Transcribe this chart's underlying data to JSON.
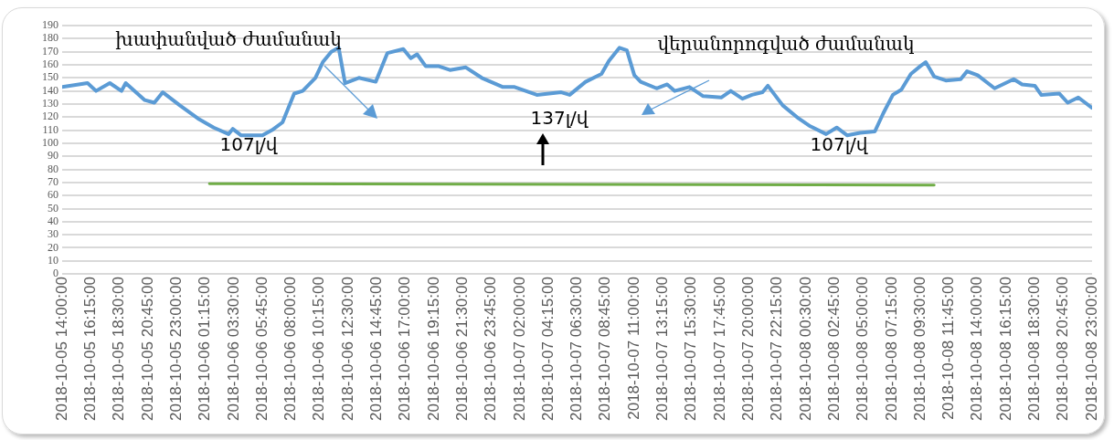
{
  "chart_data": {
    "type": "line",
    "xlim": [
      "2018-10-05T14:00",
      "2018-10-08T23:00"
    ],
    "xticks": [
      {
        "value": "2018-10-05T14:00",
        "label": "2018-10-05 14:00:00"
      },
      {
        "value": "2018-10-05T16:15",
        "label": "2018-10-05 16:15:00"
      },
      {
        "value": "2018-10-05T18:30",
        "label": "2018-10-05 18:30:00"
      },
      {
        "value": "2018-10-05T20:45",
        "label": "2018-10-05 20:45:00"
      },
      {
        "value": "2018-10-05T23:00",
        "label": "2018-10-05 23:00:00"
      },
      {
        "value": "2018-10-06T01:15",
        "label": "2018-10-06 01:15:00"
      },
      {
        "value": "2018-10-06T03:30",
        "label": "2018-10-06 03:30:00"
      },
      {
        "value": "2018-10-06T05:45",
        "label": "2018-10-06 05:45:00"
      },
      {
        "value": "2018-10-06T08:00",
        "label": "2018-10-06 08:00:00"
      },
      {
        "value": "2018-10-06T10:15",
        "label": "2018-10-06 10:15:00"
      },
      {
        "value": "2018-10-06T12:30",
        "label": "2018-10-06 12:30:00"
      },
      {
        "value": "2018-10-06T14:45",
        "label": "2018-10-06 14:45:00"
      },
      {
        "value": "2018-10-06T17:00",
        "label": "2018-10-06 17:00:00"
      },
      {
        "value": "2018-10-06T19:15",
        "label": "2018-10-06 19:15:00"
      },
      {
        "value": "2018-10-06T21:30",
        "label": "2018-10-06 21:30:00"
      },
      {
        "value": "2018-10-06T23:45",
        "label": "2018-10-06 23:45:00"
      },
      {
        "value": "2018-10-07T02:00",
        "label": "2018-10-07 02:00:00"
      },
      {
        "value": "2018-10-07T04:15",
        "label": "2018-10-07 04:15:00"
      },
      {
        "value": "2018-10-07T06:30",
        "label": "2018-10-07 06:30:00"
      },
      {
        "value": "2018-10-07T08:45",
        "label": "2018-10-07 08:45:00"
      },
      {
        "value": "2018-10-07T11:00",
        "label": "2018-10-07 11:00:00"
      },
      {
        "value": "2018-10-07T13:15",
        "label": "2018-10-07 13:15:00"
      },
      {
        "value": "2018-10-07T15:30",
        "label": "2018-10-07 15:30:00"
      },
      {
        "value": "2018-10-07T17:45",
        "label": "2018-10-07 17:45:00"
      },
      {
        "value": "2018-10-07T20:00",
        "label": "2018-10-07 20:00:00"
      },
      {
        "value": "2018-10-07T22:15",
        "label": "2018-10-07 22:15:00"
      },
      {
        "value": "2018-10-08T00:30",
        "label": "2018-10-08 00:30:00"
      },
      {
        "value": "2018-10-08T02:45",
        "label": "2018-10-08 02:45:00"
      },
      {
        "value": "2018-10-08T05:00",
        "label": "2018-10-08 05:00:00"
      },
      {
        "value": "2018-10-08T07:15",
        "label": "2018-10-08 07:15:00"
      },
      {
        "value": "2018-10-08T09:30",
        "label": "2018-10-08 09:30:00"
      },
      {
        "value": "2018-10-08T11:45",
        "label": "2018-10-08 11:45:00"
      },
      {
        "value": "2018-10-08T14:00",
        "label": "2018-10-08 14:00:00"
      },
      {
        "value": "2018-10-08T16:15",
        "label": "2018-10-08 16:15:00"
      },
      {
        "value": "2018-10-08T18:30",
        "label": "2018-10-08 18:30:00"
      },
      {
        "value": "2018-10-08T20:45",
        "label": "2018-10-08 20:45:00"
      },
      {
        "value": "2018-10-08T23:00",
        "label": "2018-10-08 23:00:00"
      }
    ],
    "ylim": [
      0,
      190
    ],
    "yticks": [
      0,
      10,
      20,
      30,
      40,
      50,
      60,
      70,
      80,
      90,
      100,
      110,
      120,
      130,
      140,
      150,
      160,
      170,
      180,
      190
    ],
    "grid": "y",
    "legend": false,
    "line_style": "solid",
    "marker": "none",
    "series": [
      {
        "color": "#5b9bd5",
        "x": [
          "2018-10-05T14:00",
          "2018-10-05T16:00",
          "2018-10-05T16:40",
          "2018-10-05T17:45",
          "2018-10-05T18:40",
          "2018-10-05T19:00",
          "2018-10-05T20:30",
          "2018-10-05T21:15",
          "2018-10-05T21:55",
          "2018-10-05T23:15",
          "2018-10-06T00:40",
          "2018-10-06T01:55",
          "2018-10-06T03:05",
          "2018-10-06T03:25",
          "2018-10-06T04:05",
          "2018-10-06T05:45",
          "2018-10-06T06:30",
          "2018-10-06T07:20",
          "2018-10-06T08:15",
          "2018-10-06T08:55",
          "2018-10-06T09:55",
          "2018-10-06T10:30",
          "2018-10-06T11:10",
          "2018-10-06T11:45",
          "2018-10-06T12:15",
          "2018-10-06T13:20",
          "2018-10-06T14:40",
          "2018-10-06T15:35",
          "2018-10-06T16:50",
          "2018-10-06T17:25",
          "2018-10-06T17:55",
          "2018-10-06T18:35",
          "2018-10-06T19:35",
          "2018-10-06T20:30",
          "2018-10-06T21:45",
          "2018-10-06T23:00",
          "2018-10-07T00:40",
          "2018-10-07T01:35",
          "2018-10-07T03:20",
          "2018-10-07T05:15",
          "2018-10-07T05:55",
          "2018-10-07T07:10",
          "2018-10-07T08:25",
          "2018-10-07T09:00",
          "2018-10-07T09:50",
          "2018-10-07T10:25",
          "2018-10-07T11:00",
          "2018-10-07T11:30",
          "2018-10-07T12:45",
          "2018-10-07T13:35",
          "2018-10-07T14:10",
          "2018-10-07T15:20",
          "2018-10-07T16:25",
          "2018-10-07T17:50",
          "2018-10-07T18:35",
          "2018-10-07T19:30",
          "2018-10-07T20:15",
          "2018-10-07T21:05",
          "2018-10-07T21:30",
          "2018-10-07T22:40",
          "2018-10-07T23:55",
          "2018-10-08T00:50",
          "2018-10-08T02:05",
          "2018-10-08T02:55",
          "2018-10-08T03:45",
          "2018-10-08T04:45",
          "2018-10-08T05:55",
          "2018-10-08T06:35",
          "2018-10-08T07:20",
          "2018-10-08T08:00",
          "2018-10-08T08:45",
          "2018-10-08T09:30",
          "2018-10-08T09:55",
          "2018-10-08T10:35",
          "2018-10-08T11:30",
          "2018-10-08T12:40",
          "2018-10-08T13:10",
          "2018-10-08T14:00",
          "2018-10-08T15:20",
          "2018-10-08T16:50",
          "2018-10-08T17:30",
          "2018-10-08T18:30",
          "2018-10-08T19:00",
          "2018-10-08T20:25",
          "2018-10-08T21:05",
          "2018-10-08T21:55",
          "2018-10-08T23:00"
        ],
        "values": [
          143,
          146,
          140,
          146,
          140,
          146,
          133,
          131,
          139,
          129,
          119,
          112,
          107,
          111,
          106,
          106,
          110,
          116,
          138,
          140,
          150,
          162,
          170,
          173,
          146,
          150,
          147,
          169,
          172,
          165,
          168,
          159,
          159,
          156,
          158,
          150,
          143,
          143,
          137,
          139,
          137,
          147,
          153,
          163,
          173,
          171,
          152,
          147,
          142,
          145,
          140,
          143,
          136,
          135,
          140,
          134,
          137,
          139,
          144,
          129,
          119,
          113,
          107,
          112,
          106,
          108,
          109,
          123,
          137,
          141,
          153,
          159,
          162,
          151,
          148,
          149,
          155,
          152,
          142,
          149,
          145,
          144,
          137,
          138,
          131,
          135,
          127
        ]
      },
      {
        "color": "#70ad47",
        "x": [
          "2018-10-06T01:35",
          "2018-10-08T10:35"
        ],
        "values": [
          69,
          68
        ]
      }
    ],
    "annotations": [
      "խափանված ժամանակ",
      "վերանորոգված ժամանակ",
      "107լ/վ",
      "137լ/վ",
      "107լ/վ"
    ]
  }
}
